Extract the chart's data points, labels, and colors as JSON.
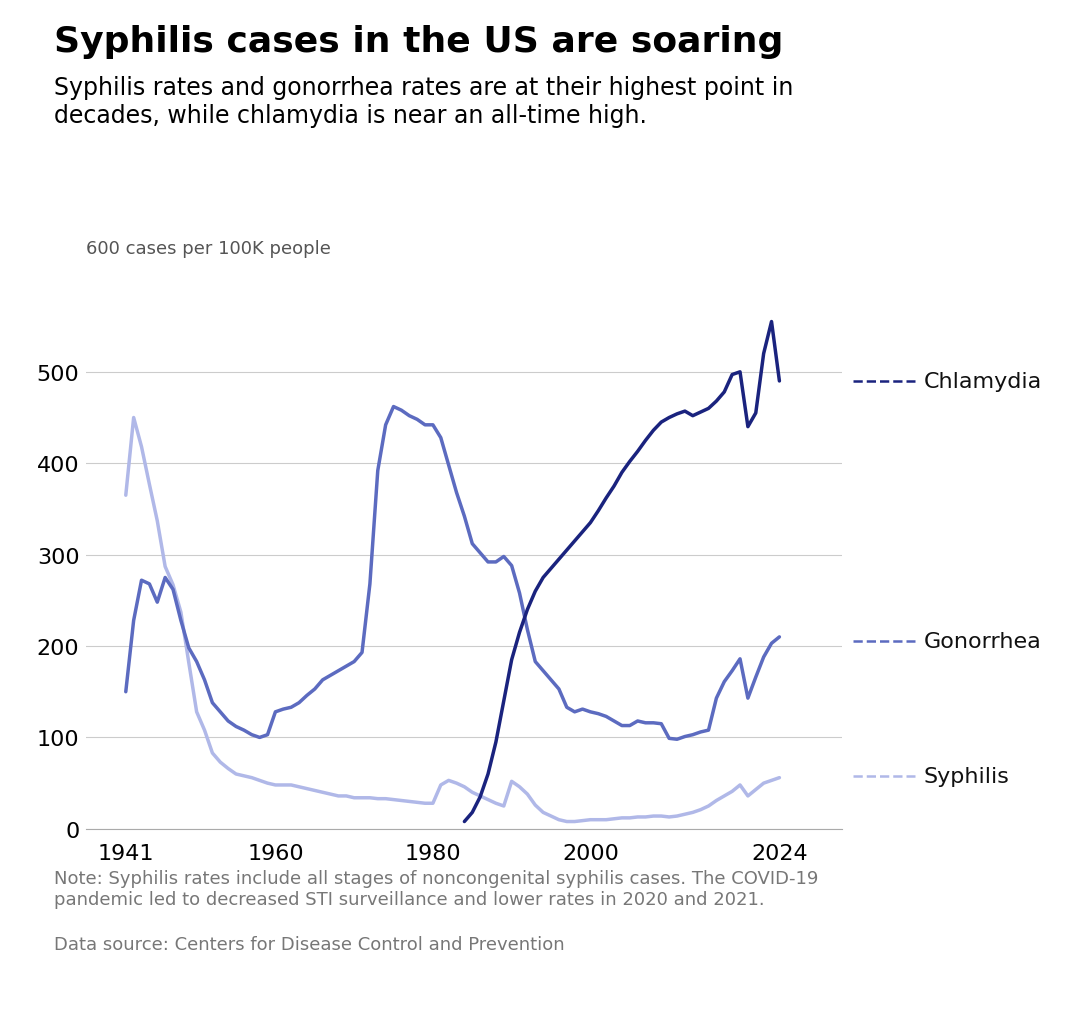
{
  "title": "Syphilis cases in the US are soaring",
  "subtitle": "Syphilis rates and gonorrhea rates are at their highest point in\ndecades, while chlamydia is near an all-time high.",
  "ylabel": "600 cases per 100K people",
  "note": "Note: Syphilis rates include all stages of noncongenital syphilis cases. The COVID-19\npandemic led to decreased STI surveillance and lower rates in 2020 and 2021.",
  "source": "Data source: Centers for Disease Control and Prevention",
  "background_color": "#ffffff",
  "title_fontsize": 26,
  "subtitle_fontsize": 17,
  "tick_fontsize": 16,
  "note_fontsize": 13,
  "ylabel_fontsize": 13,
  "label_fontsize": 16,
  "chlamydia_color": "#1a237e",
  "gonorrhea_color": "#5c6bc0",
  "syphilis_color": "#b0b8e8",
  "chlamydia": {
    "years": [
      1984,
      1985,
      1986,
      1987,
      1988,
      1989,
      1990,
      1991,
      1992,
      1993,
      1994,
      1995,
      1996,
      1997,
      1998,
      1999,
      2000,
      2001,
      2002,
      2003,
      2004,
      2005,
      2006,
      2007,
      2008,
      2009,
      2010,
      2011,
      2012,
      2013,
      2014,
      2015,
      2016,
      2017,
      2018,
      2019,
      2020,
      2021,
      2022,
      2023,
      2024
    ],
    "values": [
      8,
      18,
      35,
      60,
      95,
      140,
      185,
      215,
      240,
      260,
      275,
      285,
      295,
      305,
      315,
      325,
      335,
      348,
      362,
      375,
      390,
      402,
      413,
      425,
      436,
      445,
      450,
      454,
      457,
      452,
      456,
      460,
      468,
      478,
      497,
      500,
      440,
      455,
      520,
      555,
      490
    ],
    "label": "Chlamydia"
  },
  "gonorrhea": {
    "years": [
      1941,
      1942,
      1943,
      1944,
      1945,
      1946,
      1947,
      1948,
      1949,
      1950,
      1951,
      1952,
      1953,
      1954,
      1955,
      1956,
      1957,
      1958,
      1959,
      1960,
      1961,
      1962,
      1963,
      1964,
      1965,
      1966,
      1967,
      1968,
      1969,
      1970,
      1971,
      1972,
      1973,
      1974,
      1975,
      1976,
      1977,
      1978,
      1979,
      1980,
      1981,
      1982,
      1983,
      1984,
      1985,
      1986,
      1987,
      1988,
      1989,
      1990,
      1991,
      1992,
      1993,
      1994,
      1995,
      1996,
      1997,
      1998,
      1999,
      2000,
      2001,
      2002,
      2003,
      2004,
      2005,
      2006,
      2007,
      2008,
      2009,
      2010,
      2011,
      2012,
      2013,
      2014,
      2015,
      2016,
      2017,
      2018,
      2019,
      2020,
      2021,
      2022,
      2023,
      2024
    ],
    "values": [
      150,
      228,
      272,
      268,
      248,
      275,
      262,
      228,
      198,
      183,
      163,
      138,
      128,
      118,
      112,
      108,
      103,
      100,
      103,
      128,
      131,
      133,
      138,
      146,
      153,
      163,
      168,
      173,
      178,
      183,
      193,
      268,
      392,
      442,
      462,
      458,
      452,
      448,
      442,
      442,
      428,
      398,
      368,
      342,
      312,
      302,
      292,
      292,
      298,
      288,
      258,
      218,
      183,
      173,
      163,
      153,
      133,
      128,
      131,
      128,
      126,
      123,
      118,
      113,
      113,
      118,
      116,
      116,
      115,
      99,
      98,
      101,
      103,
      106,
      108,
      143,
      161,
      173,
      186,
      143,
      166,
      188,
      203,
      210
    ],
    "label": "Gonorrhea"
  },
  "syphilis": {
    "years": [
      1941,
      1942,
      1943,
      1944,
      1945,
      1946,
      1947,
      1948,
      1949,
      1950,
      1951,
      1952,
      1953,
      1954,
      1955,
      1956,
      1957,
      1958,
      1959,
      1960,
      1961,
      1962,
      1963,
      1964,
      1965,
      1966,
      1967,
      1968,
      1969,
      1970,
      1971,
      1972,
      1973,
      1974,
      1975,
      1976,
      1977,
      1978,
      1979,
      1980,
      1981,
      1982,
      1983,
      1984,
      1985,
      1986,
      1987,
      1988,
      1989,
      1990,
      1991,
      1992,
      1993,
      1994,
      1995,
      1996,
      1997,
      1998,
      1999,
      2000,
      2001,
      2002,
      2003,
      2004,
      2005,
      2006,
      2007,
      2008,
      2009,
      2010,
      2011,
      2012,
      2013,
      2014,
      2015,
      2016,
      2017,
      2018,
      2019,
      2020,
      2021,
      2022,
      2023,
      2024
    ],
    "values": [
      365,
      450,
      418,
      377,
      337,
      287,
      267,
      237,
      182,
      128,
      108,
      83,
      73,
      66,
      60,
      58,
      56,
      53,
      50,
      48,
      48,
      48,
      46,
      44,
      42,
      40,
      38,
      36,
      36,
      34,
      34,
      34,
      33,
      33,
      32,
      31,
      30,
      29,
      28,
      28,
      48,
      53,
      50,
      46,
      40,
      36,
      32,
      28,
      25,
      52,
      46,
      38,
      26,
      18,
      14,
      10,
      8,
      8,
      9,
      10,
      10,
      10,
      11,
      12,
      12,
      13,
      13,
      14,
      14,
      13,
      14,
      16,
      18,
      21,
      25,
      31,
      36,
      41,
      48,
      36,
      43,
      50,
      53,
      56
    ],
    "label": "Syphilis"
  },
  "ylim": [
    0,
    620
  ],
  "yticks": [
    0,
    100,
    200,
    300,
    400,
    500
  ],
  "xticks": [
    1941,
    1960,
    1980,
    2000,
    2024
  ],
  "xmin": 1936,
  "xmax": 2032
}
